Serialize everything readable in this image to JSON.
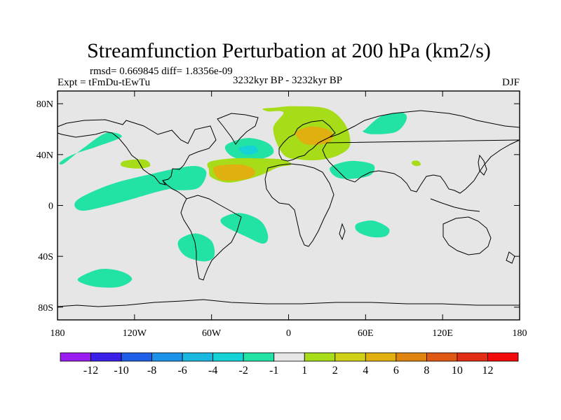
{
  "chart_data": {
    "type": "heatmap",
    "title": "Streamfunction Perturbation at 200 hPa (km2/s)",
    "stats_line": "rmsd= 0.669845 diff= 1.8356e-09",
    "experiment": "Expt = tFmDu-tEwTu",
    "period": "3232kyr BP - 3232kyr BP",
    "season": "DJF",
    "x_axis": {
      "range": [
        -180,
        180
      ],
      "ticks": [
        -180,
        -120,
        -60,
        0,
        60,
        120,
        180
      ],
      "tick_labels": [
        "180",
        "120W",
        "60W",
        "0",
        "60E",
        "120E",
        "180"
      ]
    },
    "y_axis": {
      "range": [
        -90,
        90
      ],
      "ticks": [
        80,
        40,
        0,
        -40,
        -80
      ],
      "tick_labels": [
        "80N",
        "40N",
        "0",
        "40S",
        "80S"
      ]
    },
    "colorbar": {
      "labels": [
        "-12",
        "-10",
        "-8",
        "-6",
        "-4",
        "-2",
        "-1",
        "1",
        "2",
        "4",
        "6",
        "8",
        "10",
        "12"
      ],
      "colors": [
        "#9b1cf0",
        "#3b20e8",
        "#1f5fe8",
        "#1a92e8",
        "#1ab8e0",
        "#14d2d6",
        "#22e2a6",
        "#e6e6e6",
        "#a6dc18",
        "#d0d018",
        "#e0b010",
        "#e08410",
        "#e05814",
        "#e22c14",
        "#f20a0a"
      ]
    },
    "contour_features": [
      {
        "name": "north-pacific-blob",
        "level": "-2 to -1",
        "lon": [
          -178,
          -168,
          -150,
          -130,
          -142,
          -160,
          -175
        ],
        "lat": [
          34,
          40,
          46,
          54,
          57,
          45,
          33
        ]
      },
      {
        "name": "east-pacific-band",
        "level": "-2 to -1",
        "lon": [
          -165,
          -140,
          -110,
          -78,
          -78,
          -105,
          -140,
          -162
        ],
        "lat": [
          4,
          16,
          24,
          30,
          18,
          10,
          0,
          -4
        ]
      },
      {
        "name": "caribbean-patch",
        "level": "-2 to -1",
        "lon": [
          -96,
          -88,
          -72,
          -64,
          -70,
          -86,
          -94
        ],
        "lat": [
          18,
          28,
          31,
          26,
          14,
          12,
          14
        ]
      },
      {
        "name": "south-atlantic-band",
        "level": "-2 to -1",
        "lon": [
          -52,
          -38,
          -22,
          -16,
          -20,
          -34,
          -50
        ],
        "lat": [
          -10,
          -6,
          -12,
          -24,
          -30,
          -24,
          -16
        ]
      },
      {
        "name": "argentina-patch",
        "level": "-2 to -1",
        "lon": [
          -84,
          -72,
          -60,
          -58,
          -66,
          -80,
          -86
        ],
        "lat": [
          -26,
          -22,
          -28,
          -40,
          -44,
          -40,
          -32
        ]
      },
      {
        "name": "south-pacific-patch",
        "level": "-2 to -1",
        "lon": [
          -162,
          -146,
          -130,
          -122,
          -132,
          -150,
          -163
        ],
        "lat": [
          -56,
          -50,
          -52,
          -58,
          -64,
          -64,
          -60
        ]
      },
      {
        "name": "mid-atlantic-low",
        "level": "-2 to -1",
        "lon": [
          -48,
          -32,
          -16,
          -12,
          -24,
          -40,
          -48
        ],
        "lat": [
          48,
          53,
          49,
          41,
          36,
          37,
          42
        ]
      },
      {
        "name": "mid-atlantic-low-core",
        "level": "-4 to -2",
        "lon": [
          -37,
          -27,
          -24,
          -33,
          -38
        ],
        "lat": [
          46,
          47,
          42,
          40,
          43
        ]
      },
      {
        "name": "middle-east-patch",
        "level": "-2 to -1",
        "lon": [
          36,
          50,
          66,
          64,
          50,
          38,
          32
        ],
        "lat": [
          32,
          35,
          32,
          24,
          21,
          22,
          28
        ]
      },
      {
        "name": "siberia-patch",
        "level": "-2 to -1",
        "lon": [
          60,
          72,
          88,
          92,
          84,
          66,
          58
        ],
        "lat": [
          60,
          70,
          73,
          68,
          58,
          56,
          58
        ]
      },
      {
        "name": "indian-ocean-patch",
        "level": "-2 to -1",
        "lon": [
          54,
          66,
          78,
          76,
          66,
          56,
          52
        ],
        "lat": [
          -14,
          -12,
          -18,
          -24,
          -25,
          -22,
          -18
        ]
      },
      {
        "name": "north-atlantic-europe-high",
        "level": "1 to 2",
        "lon": [
          -10,
          4,
          30,
          44,
          48,
          40,
          26,
          10,
          -4,
          -12,
          -4,
          -16,
          -20
        ],
        "lat": [
          77,
          78,
          76,
          64,
          48,
          40,
          36,
          36,
          40,
          60,
          73,
          74,
          76
        ]
      },
      {
        "name": "subtropical-atlantic-high",
        "level": "1 to 2",
        "lon": [
          -62,
          -44,
          -22,
          -4,
          2,
          -8,
          -24,
          -46,
          -60,
          -62
        ],
        "lat": [
          34,
          37,
          37,
          36,
          32,
          30,
          23,
          18,
          22,
          28
        ]
      },
      {
        "name": "eastern-atlantic-high",
        "level": "4 to 6",
        "lon": [
          -56,
          -36,
          -26,
          -32,
          -52,
          -58
        ],
        "lat": [
          31,
          32,
          27,
          21,
          20,
          26
        ]
      },
      {
        "name": "europe-high-core",
        "level": "4 to 6",
        "lon": [
          6,
          18,
          32,
          34,
          26,
          14,
          8
        ],
        "lat": [
          58,
          62,
          59,
          52,
          48,
          48,
          52
        ]
      },
      {
        "name": "gulf-of-mexico-high",
        "level": "1 to 2",
        "lon": [
          -128,
          -112,
          -108,
          -118,
          -130
        ],
        "lat": [
          35,
          36,
          31,
          29,
          31
        ]
      },
      {
        "name": "south-asia-speck",
        "level": "1 to 2",
        "lon": [
          97,
          101,
          103,
          99,
          96
        ],
        "lat": [
          35,
          35,
          32,
          31,
          33
        ]
      }
    ]
  }
}
